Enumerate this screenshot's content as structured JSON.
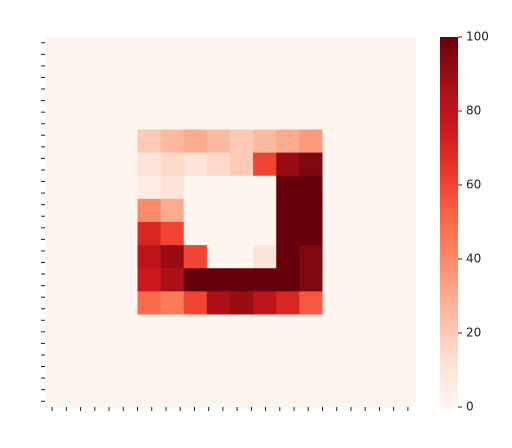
{
  "chart_data": {
    "type": "heatmap",
    "colormap": [
      "#fff5f0",
      "#fee0d2",
      "#fcbba1",
      "#fc9272",
      "#fb6a4a",
      "#ef3b2c",
      "#cb181d",
      "#a50f15",
      "#67000d"
    ],
    "clim": [
      0,
      100
    ],
    "cticks": [
      0,
      20,
      40,
      60,
      80,
      100
    ],
    "values": [
      [
        0,
        0,
        0,
        0,
        0,
        0,
        0,
        0,
        0,
        0,
        0,
        0,
        0,
        0,
        0,
        0
      ],
      [
        0,
        0,
        0,
        0,
        0,
        0,
        0,
        0,
        0,
        0,
        0,
        0,
        0,
        0,
        0,
        0
      ],
      [
        0,
        0,
        0,
        0,
        0,
        0,
        0,
        0,
        0,
        0,
        0,
        0,
        0,
        0,
        0,
        0
      ],
      [
        0,
        0,
        0,
        0,
        0,
        0,
        0,
        0,
        0,
        0,
        0,
        0,
        0,
        0,
        0,
        0
      ],
      [
        0,
        0,
        0,
        0,
        20,
        25,
        30,
        25,
        20,
        25,
        30,
        35,
        0,
        0,
        0,
        0
      ],
      [
        0,
        0,
        0,
        0,
        10,
        15,
        10,
        15,
        20,
        60,
        90,
        95,
        0,
        0,
        0,
        0
      ],
      [
        0,
        0,
        0,
        0,
        5,
        10,
        0,
        0,
        0,
        0,
        100,
        100,
        0,
        0,
        0,
        0
      ],
      [
        0,
        0,
        0,
        0,
        40,
        30,
        0,
        0,
        0,
        0,
        100,
        100,
        0,
        0,
        0,
        0
      ],
      [
        0,
        0,
        0,
        0,
        70,
        60,
        0,
        0,
        0,
        0,
        100,
        100,
        0,
        0,
        0,
        0
      ],
      [
        0,
        0,
        0,
        0,
        80,
        90,
        60,
        0,
        0,
        10,
        100,
        95,
        0,
        0,
        0,
        0
      ],
      [
        0,
        0,
        0,
        0,
        75,
        85,
        100,
        100,
        100,
        100,
        100,
        95,
        0,
        0,
        0,
        0
      ],
      [
        0,
        0,
        0,
        0,
        50,
        45,
        60,
        85,
        90,
        80,
        70,
        55,
        0,
        0,
        0,
        0
      ],
      [
        0,
        0,
        0,
        0,
        0,
        0,
        0,
        0,
        0,
        0,
        0,
        0,
        0,
        0,
        0,
        0
      ],
      [
        0,
        0,
        0,
        0,
        0,
        0,
        0,
        0,
        0,
        0,
        0,
        0,
        0,
        0,
        0,
        0
      ],
      [
        0,
        0,
        0,
        0,
        0,
        0,
        0,
        0,
        0,
        0,
        0,
        0,
        0,
        0,
        0,
        0
      ],
      [
        0,
        0,
        0,
        0,
        0,
        0,
        0,
        0,
        0,
        0,
        0,
        0,
        0,
        0,
        0,
        0
      ]
    ]
  }
}
